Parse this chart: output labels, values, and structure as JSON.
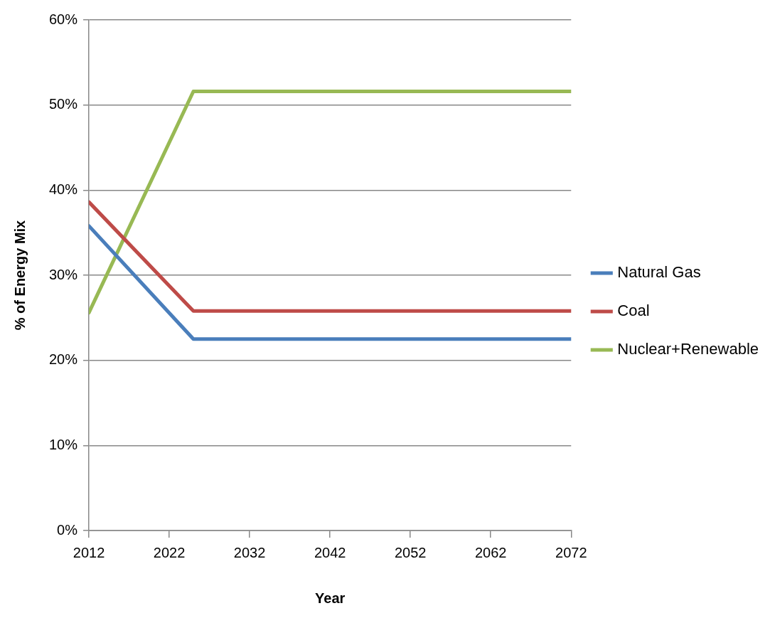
{
  "chart_data": {
    "type": "line",
    "xlabel": "Year",
    "ylabel": "% of Energy Mix",
    "x": [
      2012,
      2025,
      2072
    ],
    "series": [
      {
        "name": "Natural Gas",
        "color": "#4a7ebb",
        "values": [
          35.8,
          22.5,
          22.5
        ]
      },
      {
        "name": "Coal",
        "color": "#be4b48",
        "values": [
          38.6,
          25.8,
          25.8
        ]
      },
      {
        "name": "Nuclear+Renewable",
        "color": "#98b954",
        "values": [
          25.6,
          51.6,
          51.6
        ]
      }
    ],
    "xlim": [
      2012,
      2072
    ],
    "xticks": [
      2012,
      2022,
      2032,
      2042,
      2052,
      2062,
      2072
    ],
    "ylim": [
      0,
      60
    ],
    "yticks": [
      {
        "value": 0,
        "label": "0%"
      },
      {
        "value": 10,
        "label": "10%"
      },
      {
        "value": 20,
        "label": "20%"
      },
      {
        "value": 30,
        "label": "30%"
      },
      {
        "value": 40,
        "label": "40%"
      },
      {
        "value": 50,
        "label": "50%"
      },
      {
        "value": 60,
        "label": "60%"
      }
    ],
    "grid": "y",
    "legend": "right",
    "marker": "none",
    "line_style": "solid"
  }
}
